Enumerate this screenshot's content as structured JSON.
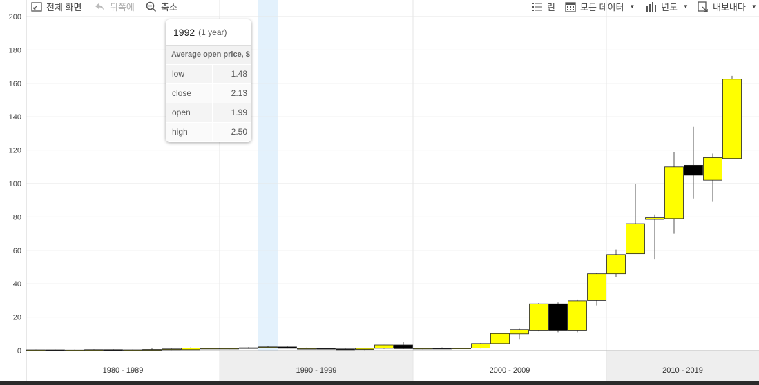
{
  "toolbar": {
    "fullscreen_label": "전체 화면",
    "back_label": "뒤쪽에",
    "zoom_out_label": "축소",
    "legend_label": "린",
    "all_data_label": "모든 데이터",
    "year_label": "년도",
    "export_label": "내보내다"
  },
  "tooltip": {
    "date": "1992",
    "period": "(1 year)",
    "title": "Average open price, $",
    "rows": [
      {
        "key": "low",
        "value": "1.48"
      },
      {
        "key": "close",
        "value": "2.13"
      },
      {
        "key": "open",
        "value": "1.99"
      },
      {
        "key": "high",
        "value": "2.50"
      }
    ]
  },
  "chart_data": {
    "type": "candlestick",
    "ylim": [
      0,
      200
    ],
    "y_ticks": [
      "0",
      "20",
      "40",
      "60",
      "80",
      "100",
      "120",
      "140",
      "160",
      "180",
      "200"
    ],
    "x_groups": [
      "1980 - 1989",
      "1990 - 1999",
      "2000 - 2009",
      "2010 - 2019"
    ],
    "highlighted_year": 1992,
    "up_color": "#ffff00",
    "down_color": "#000000",
    "candles": [
      {
        "year": 1980,
        "open": 0.3,
        "high": 0.6,
        "low": 0.1,
        "close": 0.4
      },
      {
        "year": 1981,
        "open": 0.4,
        "high": 0.6,
        "low": 0.2,
        "close": 0.3
      },
      {
        "year": 1982,
        "open": 0.3,
        "high": 0.5,
        "low": 0.1,
        "close": 0.3
      },
      {
        "year": 1983,
        "open": 0.3,
        "high": 0.7,
        "low": 0.2,
        "close": 0.5
      },
      {
        "year": 1984,
        "open": 0.5,
        "high": 0.8,
        "low": 0.2,
        "close": 0.3
      },
      {
        "year": 1985,
        "open": 0.3,
        "high": 0.6,
        "low": 0.1,
        "close": 0.4
      },
      {
        "year": 1986,
        "open": 0.4,
        "high": 1.5,
        "low": 0.3,
        "close": 0.6
      },
      {
        "year": 1987,
        "open": 0.6,
        "high": 1.6,
        "low": 0.3,
        "close": 0.9
      },
      {
        "year": 1988,
        "open": 0.5,
        "high": 1.8,
        "low": 0.4,
        "close": 1.4
      },
      {
        "year": 1989,
        "open": 1.2,
        "high": 1.6,
        "low": 0.9,
        "close": 1.3
      },
      {
        "year": 1990,
        "open": 1.0,
        "high": 1.5,
        "low": 0.8,
        "close": 1.3
      },
      {
        "year": 1991,
        "open": 1.2,
        "high": 2.0,
        "low": 1.0,
        "close": 1.6
      },
      {
        "year": 1992,
        "open": 1.99,
        "high": 2.5,
        "low": 1.48,
        "close": 2.13
      },
      {
        "year": 1993,
        "open": 2.1,
        "high": 2.5,
        "low": 1.2,
        "close": 1.3
      },
      {
        "year": 1994,
        "open": 1.1,
        "high": 1.7,
        "low": 0.9,
        "close": 1.2
      },
      {
        "year": 1995,
        "open": 1.2,
        "high": 1.5,
        "low": 0.7,
        "close": 0.9
      },
      {
        "year": 1996,
        "open": 0.9,
        "high": 1.2,
        "low": 0.4,
        "close": 0.6
      },
      {
        "year": 1997,
        "open": 0.6,
        "high": 1.6,
        "low": 0.3,
        "close": 1.3
      },
      {
        "year": 1998,
        "open": 1.3,
        "high": 3.4,
        "low": 1.0,
        "close": 3.3
      },
      {
        "year": 1999,
        "open": 3.3,
        "high": 5.0,
        "low": 0.9,
        "close": 1.1
      },
      {
        "year": 2000,
        "open": 1.0,
        "high": 1.6,
        "low": 0.7,
        "close": 1.3
      },
      {
        "year": 2001,
        "open": 1.3,
        "high": 1.8,
        "low": 0.9,
        "close": 1.2
      },
      {
        "year": 2002,
        "open": 1.2,
        "high": 1.5,
        "low": 0.9,
        "close": 1.4
      },
      {
        "year": 2003,
        "open": 1.4,
        "high": 4.5,
        "low": 1.2,
        "close": 4.2
      },
      {
        "year": 2004,
        "open": 4.2,
        "high": 10.6,
        "low": 4.0,
        "close": 10.2
      },
      {
        "year": 2005,
        "open": 10.0,
        "high": 13.0,
        "low": 6.5,
        "close": 12.5
      },
      {
        "year": 2006,
        "open": 11.8,
        "high": 28.5,
        "low": 11.5,
        "close": 28.0
      },
      {
        "year": 2007,
        "open": 28.0,
        "high": 28.8,
        "low": 11.0,
        "close": 11.8
      },
      {
        "year": 2008,
        "open": 11.8,
        "high": 30.2,
        "low": 11.0,
        "close": 29.8
      },
      {
        "year": 2009,
        "open": 30.0,
        "high": 46.5,
        "low": 27.0,
        "close": 46.0
      },
      {
        "year": 2010,
        "open": 46.0,
        "high": 60.5,
        "low": 44.0,
        "close": 57.5
      },
      {
        "year": 2011,
        "open": 58.0,
        "high": 100.0,
        "low": 58.0,
        "close": 76.0
      },
      {
        "year": 2012,
        "open": 78.5,
        "high": 81.5,
        "low": 54.5,
        "close": 79.5
      },
      {
        "year": 2013,
        "open": 79.0,
        "high": 119.0,
        "low": 70.0,
        "close": 110.0
      },
      {
        "year": 2014,
        "open": 111.0,
        "high": 134.0,
        "low": 91.0,
        "close": 105.0
      },
      {
        "year": 2015,
        "open": 102.0,
        "high": 118.0,
        "low": 89.0,
        "close": 115.5
      },
      {
        "year": 2016,
        "open": 115.0,
        "high": 164.5,
        "low": 114.5,
        "close": 162.5
      }
    ]
  }
}
